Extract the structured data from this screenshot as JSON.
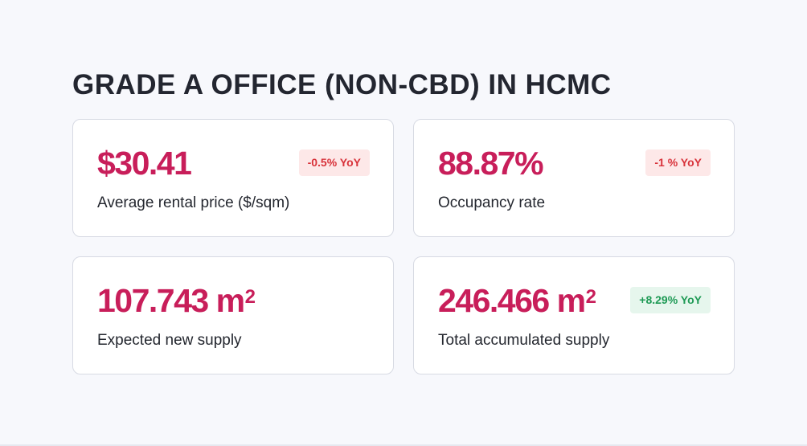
{
  "page": {
    "title": "GRADE A OFFICE (NON-CBD) IN HCMC"
  },
  "colors": {
    "accent": "#c81e5a",
    "negative_text": "#d8323a",
    "negative_bg": "#fde8e8",
    "positive_text": "#1e9a55",
    "positive_bg": "#e6f6ed"
  },
  "cards": [
    {
      "value": "$30.41",
      "unit_superscript": "",
      "label": "Average rental price ($/sqm)",
      "badge": "-0.5% YoY",
      "badge_tone": "negative"
    },
    {
      "value": "88.87%",
      "unit_superscript": "",
      "label": "Occupancy rate",
      "badge": "-1 % YoY",
      "badge_tone": "negative"
    },
    {
      "value": "107.743 m",
      "unit_superscript": "2",
      "label": "Expected new supply",
      "badge": "",
      "badge_tone": ""
    },
    {
      "value": "246.466 m",
      "unit_superscript": "2",
      "label": "Total accumulated supply",
      "badge": "+8.29% YoY",
      "badge_tone": "positive"
    }
  ]
}
